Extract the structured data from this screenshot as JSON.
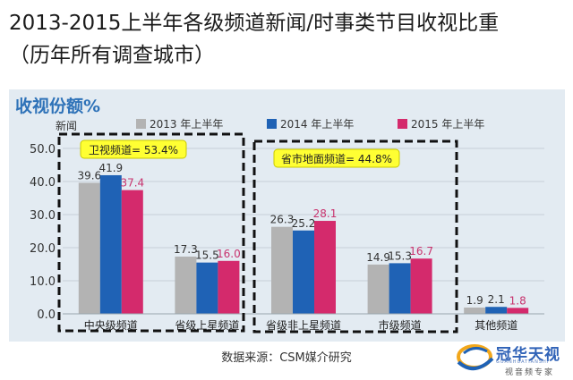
{
  "title_line1": "2013-2015上半年各级频道新闻/时事类节目收视比重",
  "title_line2": "（历年所有调查城市）",
  "source": "数据来源：CSM媒介研究",
  "logo": {
    "name": "冠华天视",
    "pinyin": "GUANHUATIANSHI",
    "sub": "视音频专家"
  },
  "colors": {
    "2013": "#b3b3b3",
    "2014": "#1f62b5",
    "2015": "#d42a6c",
    "2015_label": "#c8336e",
    "panel": "#e3ebf2",
    "heading": "#2e72b8",
    "callout_bg": "#ffff33"
  },
  "chart_data": {
    "type": "bar",
    "title": "收视份额%",
    "ylabel": "新闻",
    "xlabel": "",
    "ylim": [
      0,
      50
    ],
    "yticks": [
      "0.0",
      "10.0",
      "20.0",
      "30.0",
      "40.0",
      "50.0"
    ],
    "grid": true,
    "legend_position": "top",
    "categories": [
      "中央级频道",
      "省级上星频道",
      "省级非上星频道",
      "市级频道",
      "其他频道"
    ],
    "series": [
      {
        "name": "2013 年上半年",
        "values": [
          39.6,
          17.3,
          26.3,
          14.9,
          1.9
        ],
        "labels": [
          "39.6",
          "17.3",
          "26.3",
          "14.9",
          "1.9"
        ]
      },
      {
        "name": "2014 年上半年",
        "values": [
          41.9,
          15.5,
          25.2,
          15.3,
          2.1
        ],
        "labels": [
          "41.9",
          "15.5",
          "25.2",
          "15.3",
          "2.1"
        ]
      },
      {
        "name": "2015 年上半年",
        "values": [
          37.4,
          16.0,
          28.1,
          16.7,
          1.8
        ],
        "labels": [
          "37.4",
          "16.0",
          "28.1",
          "16.7",
          "1.8"
        ]
      }
    ],
    "annotations": [
      {
        "text": "卫视频道= 53.4%",
        "group": [
          0,
          1
        ]
      },
      {
        "text": "省市地面频道= 44.8%",
        "group": [
          2,
          3
        ]
      }
    ]
  }
}
